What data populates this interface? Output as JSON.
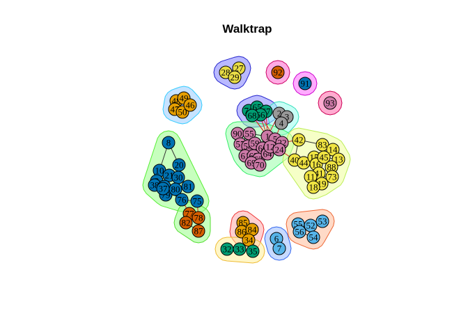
{
  "title": "Walktrap",
  "communities": [
    {
      "name": "community-1",
      "fill": "#7f7fff",
      "stroke": "#2222cc",
      "nodes": [
        "28",
        "27",
        "29"
      ]
    },
    {
      "name": "community-2",
      "fill": "#ff66cc",
      "stroke": "#cc0066",
      "nodes": [
        "92"
      ]
    },
    {
      "name": "community-3",
      "fill": "#ff66ff",
      "stroke": "#cc00cc",
      "nodes": [
        "91"
      ]
    },
    {
      "name": "community-4",
      "fill": "#ff66aa",
      "stroke": "#cc0055",
      "nodes": [
        "93"
      ]
    },
    {
      "name": "community-5",
      "fill": "#99ccff",
      "stroke": "#33ccff",
      "nodes": [
        "48",
        "49",
        "47",
        "50",
        "46"
      ]
    },
    {
      "name": "community-6",
      "fill": "#8888ff",
      "stroke": "#2222cc",
      "nodes": [
        "71",
        "65",
        "67",
        "66",
        "68"
      ]
    },
    {
      "name": "community-7",
      "fill": "#99ffee",
      "stroke": "#33ddbb",
      "nodes": [
        "2",
        "3",
        "4"
      ]
    },
    {
      "name": "community-8",
      "fill": "#99ffaa",
      "stroke": "#33ee66",
      "nodes": [
        "90",
        "55",
        "57",
        "58",
        "59",
        "60",
        "61",
        "62",
        "63",
        "64",
        "69",
        "70",
        "1",
        "5",
        "12",
        "22",
        "24"
      ]
    },
    {
      "name": "community-9",
      "fill": "#eeff99",
      "stroke": "#bbee55",
      "nodes": [
        "42",
        "83",
        "14",
        "40",
        "44",
        "15",
        "16",
        "45",
        "13",
        "88",
        "41",
        "11",
        "73",
        "19",
        "18"
      ]
    },
    {
      "name": "community-10",
      "fill": "#99ff88",
      "stroke": "#55ee33",
      "nodes": [
        "8",
        "20",
        "10",
        "9",
        "21",
        "30",
        "38",
        "39",
        "79",
        "80",
        "81",
        "37",
        "76",
        "75"
      ]
    },
    {
      "name": "community-11",
      "fill": "#99ff88",
      "stroke": "#55dd33",
      "nodes": [
        "77",
        "78",
        "82",
        "87"
      ]
    },
    {
      "name": "community-12",
      "fill": "#ffaaaa",
      "stroke": "#ee3333",
      "nodes": [
        "85",
        "86",
        "84",
        "34"
      ]
    },
    {
      "name": "community-13",
      "fill": "#ffee99",
      "stroke": "#eebb33",
      "nodes": [
        "32",
        "33",
        "35"
      ]
    },
    {
      "name": "community-14",
      "fill": "#99bbff",
      "stroke": "#3366ee",
      "nodes": [
        "6",
        "7"
      ]
    },
    {
      "name": "community-15",
      "fill": "#ffbb99",
      "stroke": "#ee6633",
      "nodes": [
        "55b",
        "52",
        "53",
        "56",
        "54"
      ]
    }
  ],
  "nodes": [
    {
      "id": "28",
      "label": "28",
      "color": "#e8dc46"
    },
    {
      "id": "27",
      "label": "27",
      "color": "#e8dc46"
    },
    {
      "id": "29",
      "label": "29",
      "color": "#e8dc46"
    },
    {
      "id": "92",
      "label": "92",
      "color": "#d55e00"
    },
    {
      "id": "91",
      "label": "91",
      "color": "#0072b2"
    },
    {
      "id": "93",
      "label": "93",
      "color": "#cc79a7"
    },
    {
      "id": "48",
      "label": "48",
      "color": "#e69f00"
    },
    {
      "id": "49",
      "label": "49",
      "color": "#e69f00"
    },
    {
      "id": "47",
      "label": "47",
      "color": "#e69f00"
    },
    {
      "id": "50",
      "label": "50",
      "color": "#e69f00"
    },
    {
      "id": "46",
      "label": "46",
      "color": "#e69f00"
    },
    {
      "id": "71",
      "label": "71",
      "color": "#009e73"
    },
    {
      "id": "65",
      "label": "65",
      "color": "#009e73"
    },
    {
      "id": "67",
      "label": "67",
      "color": "#009e73"
    },
    {
      "id": "66",
      "label": "66",
      "color": "#009e73"
    },
    {
      "id": "68",
      "label": "68",
      "color": "#009e73"
    },
    {
      "id": "2",
      "label": "2",
      "color": "#999999"
    },
    {
      "id": "3",
      "label": "3",
      "color": "#999999"
    },
    {
      "id": "4",
      "label": "4",
      "color": "#999999"
    },
    {
      "id": "90",
      "label": "90",
      "color": "#cc79a7"
    },
    {
      "id": "55",
      "label": "55",
      "color": "#cc79a7"
    },
    {
      "id": "57",
      "label": "57",
      "color": "#cc79a7"
    },
    {
      "id": "58",
      "label": "58",
      "color": "#cc79a7"
    },
    {
      "id": "59",
      "label": "59",
      "color": "#cc79a7"
    },
    {
      "id": "60",
      "label": "60",
      "color": "#cc79a7"
    },
    {
      "id": "61",
      "label": "61",
      "color": "#cc79a7"
    },
    {
      "id": "62",
      "label": "62",
      "color": "#cc79a7"
    },
    {
      "id": "63",
      "label": "63",
      "color": "#cc79a7"
    },
    {
      "id": "64",
      "label": "64",
      "color": "#cc79a7"
    },
    {
      "id": "69",
      "label": "69",
      "color": "#cc79a7"
    },
    {
      "id": "70",
      "label": "70",
      "color": "#cc79a7"
    },
    {
      "id": "1",
      "label": "1",
      "color": "#cc79a7"
    },
    {
      "id": "5",
      "label": "5",
      "color": "#cc79a7"
    },
    {
      "id": "12",
      "label": "12",
      "color": "#cc79a7"
    },
    {
      "id": "22",
      "label": "22",
      "color": "#cc79a7"
    },
    {
      "id": "24",
      "label": "24",
      "color": "#cc79a7"
    },
    {
      "id": "42",
      "label": "42",
      "color": "#f0e442"
    },
    {
      "id": "83",
      "label": "83",
      "color": "#f0e442"
    },
    {
      "id": "14",
      "label": "14",
      "color": "#f0e442"
    },
    {
      "id": "40",
      "label": "40",
      "color": "#f0e442"
    },
    {
      "id": "44",
      "label": "44",
      "color": "#f0e442"
    },
    {
      "id": "15",
      "label": "15",
      "color": "#f0e442"
    },
    {
      "id": "16",
      "label": "16",
      "color": "#f0e442"
    },
    {
      "id": "45",
      "label": "45",
      "color": "#f0e442"
    },
    {
      "id": "13",
      "label": "13",
      "color": "#f0e442"
    },
    {
      "id": "88",
      "label": "88",
      "color": "#f0e442"
    },
    {
      "id": "41",
      "label": "41",
      "color": "#f0e442"
    },
    {
      "id": "11",
      "label": "11",
      "color": "#f0e442"
    },
    {
      "id": "73",
      "label": "73",
      "color": "#f0e442"
    },
    {
      "id": "19",
      "label": "19",
      "color": "#f0e442"
    },
    {
      "id": "18",
      "label": "18",
      "color": "#f0e442"
    },
    {
      "id": "8",
      "label": "8",
      "color": "#0072b2"
    },
    {
      "id": "20",
      "label": "20",
      "color": "#0072b2"
    },
    {
      "id": "10",
      "label": "10",
      "color": "#0072b2"
    },
    {
      "id": "9",
      "label": "9",
      "color": "#0072b2"
    },
    {
      "id": "21",
      "label": "21",
      "color": "#0072b2"
    },
    {
      "id": "30",
      "label": "30",
      "color": "#0072b2"
    },
    {
      "id": "38",
      "label": "38",
      "color": "#0072b2"
    },
    {
      "id": "39",
      "label": "39",
      "color": "#0072b2"
    },
    {
      "id": "79",
      "label": "79",
      "color": "#0072b2"
    },
    {
      "id": "80",
      "label": "80",
      "color": "#0072b2"
    },
    {
      "id": "81",
      "label": "81",
      "color": "#0072b2"
    },
    {
      "id": "37",
      "label": "37",
      "color": "#0072b2"
    },
    {
      "id": "76",
      "label": "76",
      "color": "#0072b2"
    },
    {
      "id": "75",
      "label": "75",
      "color": "#0072b2"
    },
    {
      "id": "77",
      "label": "77",
      "color": "#d55e00"
    },
    {
      "id": "78",
      "label": "78",
      "color": "#d55e00"
    },
    {
      "id": "82",
      "label": "82",
      "color": "#d55e00"
    },
    {
      "id": "87",
      "label": "87",
      "color": "#d55e00"
    },
    {
      "id": "85",
      "label": "85",
      "color": "#e69f00"
    },
    {
      "id": "86",
      "label": "86",
      "color": "#e69f00"
    },
    {
      "id": "84",
      "label": "84",
      "color": "#e69f00"
    },
    {
      "id": "34",
      "label": "34",
      "color": "#e69f00"
    },
    {
      "id": "32",
      "label": "32",
      "color": "#009e73"
    },
    {
      "id": "33",
      "label": "33",
      "color": "#009e73"
    },
    {
      "id": "35",
      "label": "35",
      "color": "#009e73"
    },
    {
      "id": "6",
      "label": "6",
      "color": "#56b4e9"
    },
    {
      "id": "7",
      "label": "7",
      "color": "#56b4e9"
    },
    {
      "id": "55b",
      "label": "55",
      "color": "#56b4e9"
    },
    {
      "id": "52",
      "label": "52",
      "color": "#56b4e9"
    },
    {
      "id": "53",
      "label": "53",
      "color": "#56b4e9"
    },
    {
      "id": "56",
      "label": "56",
      "color": "#56b4e9"
    },
    {
      "id": "54",
      "label": "54",
      "color": "#56b4e9"
    }
  ],
  "edges": [
    [
      "28",
      "27"
    ],
    [
      "28",
      "29"
    ],
    [
      "27",
      "29"
    ],
    [
      "48",
      "49"
    ],
    [
      "48",
      "47"
    ],
    [
      "49",
      "46"
    ],
    [
      "47",
      "50"
    ],
    [
      "50",
      "46"
    ],
    [
      "48",
      "50"
    ],
    [
      "71",
      "65"
    ],
    [
      "65",
      "67"
    ],
    [
      "71",
      "68"
    ],
    [
      "67",
      "66"
    ],
    [
      "66",
      "68"
    ],
    [
      "2",
      "3"
    ],
    [
      "2",
      "4"
    ],
    [
      "3",
      "4"
    ],
    [
      "71",
      "1"
    ],
    [
      "65",
      "1"
    ],
    [
      "67",
      "1"
    ],
    [
      "66",
      "5"
    ],
    [
      "68",
      "1"
    ],
    [
      "4",
      "5"
    ],
    [
      "2",
      "1"
    ],
    [
      "90",
      "55"
    ],
    [
      "55",
      "57"
    ],
    [
      "57",
      "58"
    ],
    [
      "58",
      "59"
    ],
    [
      "59",
      "60"
    ],
    [
      "60",
      "61"
    ],
    [
      "61",
      "62"
    ],
    [
      "62",
      "63"
    ],
    [
      "63",
      "64"
    ],
    [
      "64",
      "69"
    ],
    [
      "69",
      "70"
    ],
    [
      "70",
      "1"
    ],
    [
      "1",
      "5"
    ],
    [
      "5",
      "12"
    ],
    [
      "12",
      "22"
    ],
    [
      "22",
      "24"
    ],
    [
      "24",
      "1"
    ],
    [
      "90",
      "57"
    ],
    [
      "55",
      "1"
    ],
    [
      "59",
      "5"
    ],
    [
      "24",
      "40"
    ],
    [
      "22",
      "42"
    ],
    [
      "42",
      "83"
    ],
    [
      "83",
      "14"
    ],
    [
      "14",
      "13"
    ],
    [
      "42",
      "40"
    ],
    [
      "40",
      "44"
    ],
    [
      "44",
      "15"
    ],
    [
      "15",
      "16"
    ],
    [
      "16",
      "45"
    ],
    [
      "45",
      "13"
    ],
    [
      "13",
      "88"
    ],
    [
      "88",
      "41"
    ],
    [
      "41",
      "11"
    ],
    [
      "11",
      "73"
    ],
    [
      "73",
      "19"
    ],
    [
      "19",
      "18"
    ],
    [
      "18",
      "41"
    ],
    [
      "15",
      "41"
    ],
    [
      "83",
      "45"
    ],
    [
      "8",
      "20"
    ],
    [
      "8",
      "10"
    ],
    [
      "10",
      "9"
    ],
    [
      "9",
      "21"
    ],
    [
      "21",
      "30"
    ],
    [
      "30",
      "38"
    ],
    [
      "38",
      "39"
    ],
    [
      "39",
      "79"
    ],
    [
      "79",
      "80"
    ],
    [
      "80",
      "81"
    ],
    [
      "81",
      "37"
    ],
    [
      "37",
      "76"
    ],
    [
      "76",
      "75"
    ],
    [
      "20",
      "30"
    ],
    [
      "10",
      "38"
    ],
    [
      "76",
      "77"
    ],
    [
      "75",
      "78"
    ],
    [
      "77",
      "78"
    ],
    [
      "77",
      "82"
    ],
    [
      "78",
      "87"
    ],
    [
      "82",
      "87"
    ],
    [
      "85",
      "86"
    ],
    [
      "85",
      "84"
    ],
    [
      "86",
      "34"
    ],
    [
      "84",
      "34"
    ],
    [
      "32",
      "33"
    ],
    [
      "33",
      "35"
    ],
    [
      "6",
      "7"
    ],
    [
      "55b",
      "52"
    ],
    [
      "52",
      "53"
    ],
    [
      "55b",
      "56"
    ],
    [
      "56",
      "54"
    ],
    [
      "52",
      "54"
    ]
  ]
}
